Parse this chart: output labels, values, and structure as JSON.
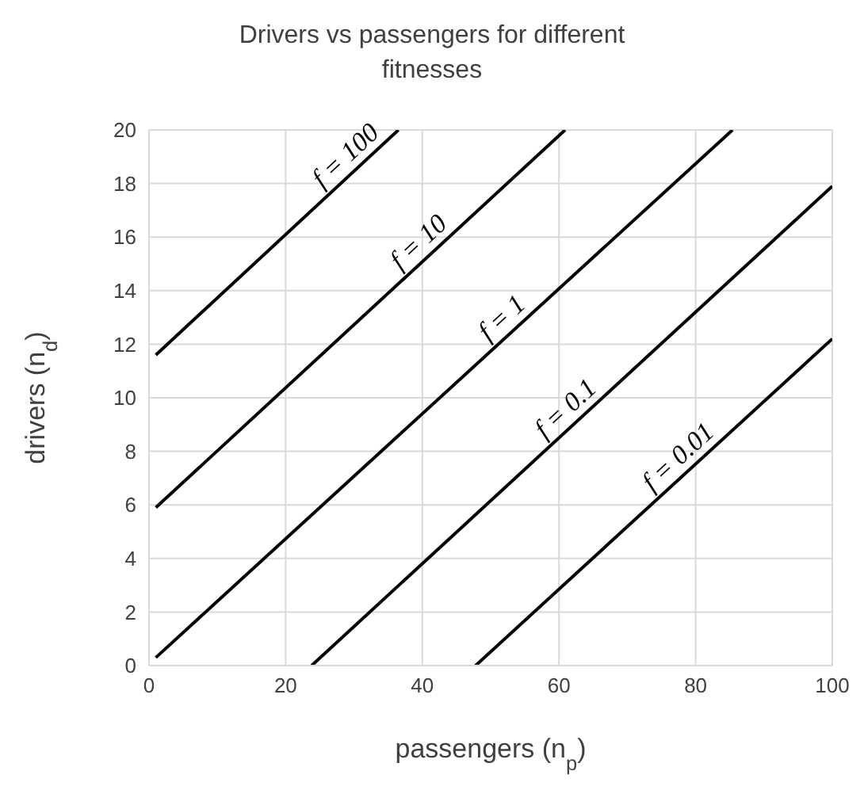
{
  "chart_data": {
    "type": "line",
    "title": "Drivers vs passengers for different fitnesses",
    "xlabel": "passengers (n$_{p}$)",
    "ylabel": "drivers (n$_{d}$)",
    "series": [
      {
        "name": "f = 100",
        "color": "#000000",
        "x": [
          1,
          36.5
        ],
        "values": [
          11.6,
          20
        ]
      },
      {
        "name": "f = 10",
        "color": "#000000",
        "x": [
          1,
          60.9
        ],
        "values": [
          5.9,
          20
        ]
      },
      {
        "name": "f = 1",
        "color": "#000000",
        "x": [
          1,
          85.4
        ],
        "values": [
          0.3,
          20
        ]
      },
      {
        "name": "f = 0.1",
        "color": "#000000",
        "x": [
          23.8,
          100
        ],
        "values": [
          0,
          17.9
        ]
      },
      {
        "name": "f = 0.01",
        "color": "#000000",
        "x": [
          47.8,
          100
        ],
        "values": [
          0,
          12.2
        ]
      }
    ],
    "xlim": [
      0,
      100
    ],
    "xticks": [
      0,
      20,
      40,
      60,
      80,
      100
    ],
    "ylim": [
      0,
      20
    ],
    "yticks": [
      0,
      2,
      4,
      6,
      8,
      10,
      12,
      14,
      16,
      18,
      20
    ],
    "grid": true,
    "marker": "none",
    "line_style": "solid"
  }
}
